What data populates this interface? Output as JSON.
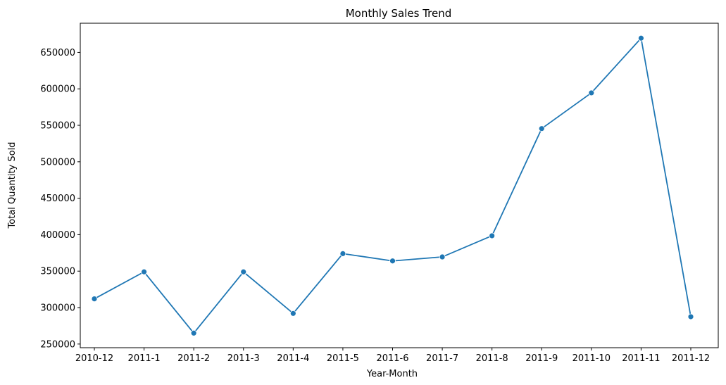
{
  "chart_data": {
    "type": "line",
    "title": "Monthly Sales Trend",
    "xlabel": "Year-Month",
    "ylabel": "Total Quantity Sold",
    "categories": [
      "2010-12",
      "2011-1",
      "2011-2",
      "2011-3",
      "2011-4",
      "2011-5",
      "2011-6",
      "2011-7",
      "2011-8",
      "2011-9",
      "2011-10",
      "2011-11",
      "2011-12"
    ],
    "series": [
      {
        "values": [
          312000,
          349000,
          265000,
          349000,
          292000,
          374000,
          364000,
          369500,
          398500,
          545500,
          594500,
          669500,
          287500
        ],
        "color": "#1f77b4",
        "marker": "circle"
      }
    ],
    "yticks": [
      250000,
      300000,
      350000,
      400000,
      450000,
      500000,
      550000,
      600000,
      650000
    ],
    "ytick_labels": [
      "250000",
      "300000",
      "350000",
      "400000",
      "450000",
      "500000",
      "550000",
      "600000",
      "650000"
    ],
    "ylim": [
      245000,
      690000
    ],
    "grid": false,
    "legend": "none"
  }
}
